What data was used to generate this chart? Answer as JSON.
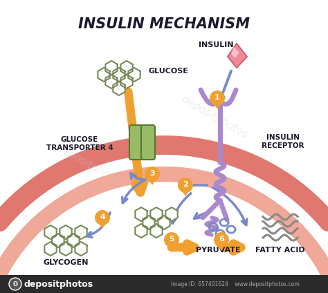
{
  "title": "INSULIN MECHANISM",
  "bg_color": "#ffffff",
  "title_color": "#1a1a2e",
  "membrane_outer": "#e07870",
  "membrane_inner": "#f0a898",
  "membrane_gap": "#ffffff",
  "arrow_blue": "#7788cc",
  "arrow_orange": "#f0a030",
  "transporter_color": "#99bb66",
  "transporter_edge": "#557733",
  "receptor_color": "#aa88cc",
  "insulin_color": "#f08898",
  "insulin_edge": "#cc6677",
  "glucose_hex_color": "#778855",
  "step_bg_color": "#f0a030",
  "step_text_color": "#ffffff",
  "labels": {
    "glucose": "GLUCOSE",
    "glucose_transporter": "GLUCOSE\nTRANSPORTER 4",
    "insulin": "INSULIN",
    "insulin_receptor": "INSULIN\nRECEPTOR",
    "glycogen": "GLYCOGEN",
    "pyruvate": "PYRUVATE",
    "fatty_acid": "FATTY ACID"
  },
  "depositphotos_bar_color": "#2b2b2b",
  "depositphotos_text": "depositphotos",
  "watermark_text": "depositphotos"
}
